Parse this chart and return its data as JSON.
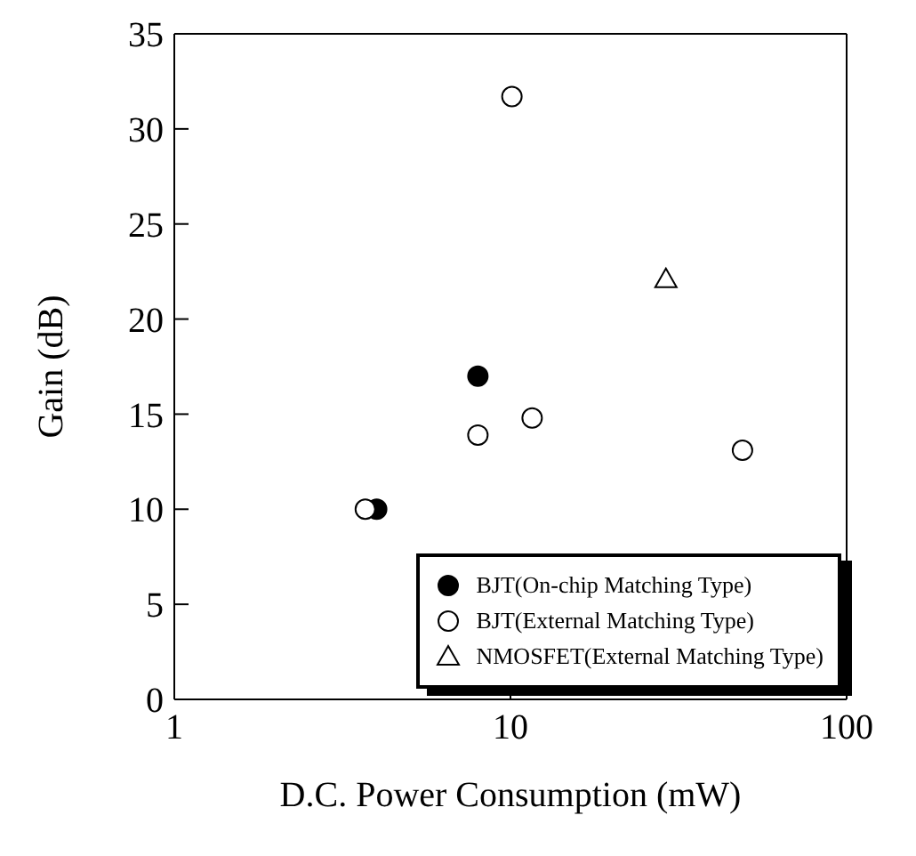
{
  "chart_data": {
    "type": "scatter",
    "xlabel": "D.C. Power Consumption (mW)",
    "ylabel": "Gain (dB)",
    "log": "x",
    "xlim": [
      1,
      100
    ],
    "xticks": [
      1,
      10,
      100
    ],
    "ylim": [
      0,
      35
    ],
    "yticks": [
      0,
      5,
      10,
      15,
      20,
      25,
      30,
      35
    ],
    "legend": "bottom right",
    "series": [
      {
        "name": "BJT(On-chip Matching Type)",
        "color": "#000000",
        "marker": "circle",
        "x": [
          4.0,
          8.0
        ],
        "values": [
          10.0,
          17.0
        ]
      },
      {
        "name": "BJT(External Matching Type)",
        "color": "#ffffff",
        "marker": "circle",
        "x": [
          3.7,
          8.0,
          10.1,
          11.6,
          49
        ],
        "values": [
          10.0,
          13.9,
          31.7,
          14.8,
          13.1
        ]
      },
      {
        "name": "NMOSFET(External Matching Type)",
        "color": "#ffffff",
        "marker": "triangle",
        "x": [
          29
        ],
        "values": [
          22.1
        ]
      }
    ]
  }
}
